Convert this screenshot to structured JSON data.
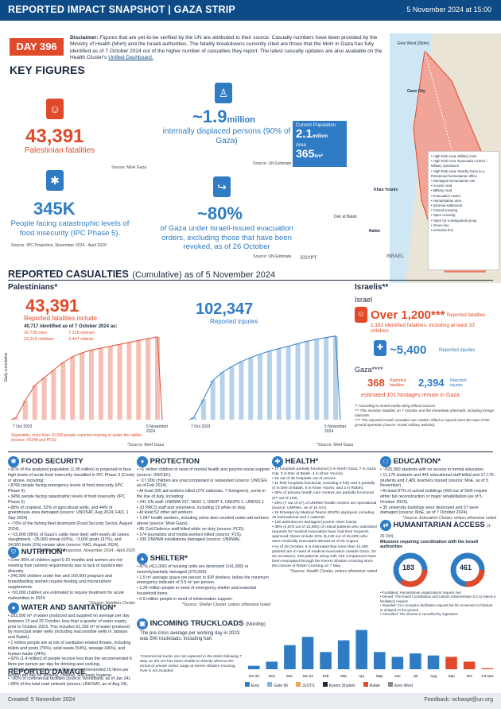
{
  "header": {
    "title": "REPORTED IMPACT SNAPSHOT | GAZA STRIP",
    "date": "5 November 2024 at 15:00"
  },
  "day": {
    "label": "DAY 396"
  },
  "disclaimer": {
    "label": "Disclaimer:",
    "text": "Figures that are yet-to-be verified by the UN are attributed to their source. Casualty numbers have been provided by the Ministry of Health (MoH) and the Israeli authorities. The fatality breakdowns currently cited are those that the MoH in Gaza has fully identified as of 7 October 2024 out of the higher number of casualties they report. The latest casualty updates are also available on the Health Cluster's",
    "link": "Unified Dashboard."
  },
  "key_figures": {
    "title": "KEY FIGURES",
    "fatalities": {
      "value": "43,391",
      "label": "Palestinian fatalities",
      "source": "Source: MoH Gaza"
    },
    "idps": {
      "value": "~1.9",
      "unit": "million",
      "label": "internally displaced persons (90% of Gaza)",
      "source": "Source: UN Estimate"
    },
    "ipc": {
      "value": "345K",
      "label": "People facing catastrophic levels of food insecurity (IPC Phase 5).",
      "source": "Source: IPC Projection, November 2024 - April 2025"
    },
    "evac": {
      "value": "~80%",
      "label": "of Gaza under Israeli-issued evacuation orders, excluding those that have been revoked, as of 26 October",
      "source": "Source: UN Estimate"
    }
  },
  "map": {
    "pop_label": "Current Population",
    "pop_value": "2.1",
    "pop_unit": "million",
    "area_label": "Area",
    "area_value": "365",
    "area_unit": "km²",
    "country1": "ISRAEL",
    "country2": "EGYPT",
    "place1": "Gaza City",
    "place2": "Khan Younis",
    "place3": "Rafah",
    "place4": "Deir al Balah",
    "place5": "Erez West (Zikim)",
    "legend": [
      "High Risk Area: Military zone",
      "High Risk Area: Evacuation orders / Military operations",
      "High Risk Area: Nearby Gaza to a threatened humanitarian office",
      "Damaged humanitarian site",
      "Access road",
      "Military road",
      "Evacuation routes",
      "Humanitarian area",
      "Informal settlement",
      "Closed crossing",
      "Open crossing",
      "Open for a designated group",
      "Green line",
      "Armistice line"
    ]
  },
  "casualties": {
    "title": "REPORTED CASUALTIES",
    "subtitle": "(Cumulative) as of 5 November 2024",
    "pal_title": "Palestinians*",
    "pal_killed": "43,391",
    "pal_killed_label": "Reported fatalities include",
    "identified": "40,717 identified as of 7 October 2024 as:",
    "men": "16,735 men",
    "women": "7,216 women",
    "children": "13,319 children",
    "elderly": "3,447 elderly",
    "pal_injured": "102,347",
    "pal_injured_label": "Reported injuries",
    "y_label": "Daily cumulative",
    "x_start": "7 Oct 2023",
    "x_end": "5 November 2024",
    "pal_note": "Separately, more than 10,000 people reported missing or under the rubble (source: OCHA and PCS)",
    "source": "*Source: MoH Gaza",
    "isr_title": "Israelis**",
    "isr_sub": "Israel",
    "isr_killed": "Over 1,200***",
    "isr_killed_label": "Reported fatalities",
    "isr_ident": "1,162 identified fatalities, including at least 33 children",
    "isr_injured": "~5,400",
    "isr_injured_label": "Reported injuries",
    "gaza_sub": "Gaza****",
    "gaza_killed": "368",
    "gaza_killed_label": "Reported fatalities",
    "gaza_injured": "2,394",
    "gaza_injured_label": "Reported injuries",
    "hostages": "estimated 101 hostages remain in Gaza",
    "isr_notes": [
      "** According to Israeli media citing official sources.",
      "*** This includes fatalities on 7 October and the immediate aftermath, including foreign nationals.",
      "**** The reported Israeli casualties are soldiers killed or injured since the start of the ground operation (source: Israeli military website)."
    ]
  },
  "chart_data": [
    {
      "type": "area",
      "series": [
        {
          "name": "Reported fatalities",
          "values": [
            1000,
            10000,
            18000,
            22000,
            26000,
            30000,
            33000,
            35000,
            36500,
            37500,
            38500,
            39500,
            40500,
            41500,
            42500,
            43391
          ]
        }
      ],
      "x": [
        "7 Oct 2023",
        "",
        "",
        "",
        "",
        "",
        "",
        "",
        "",
        "",
        "",
        "",
        "",
        "",
        "",
        "5 November 2024"
      ],
      "ylabel": "Daily cumulative"
    },
    {
      "type": "area",
      "series": [
        {
          "name": "Reported injuries",
          "values": [
            3000,
            25000,
            48000,
            58000,
            65000,
            71000,
            76000,
            80000,
            84000,
            87000,
            90000,
            93000,
            96000,
            98500,
            100500,
            102347
          ]
        }
      ],
      "x": [
        "7 Oct 2023",
        "",
        "",
        "",
        "",
        "",
        "",
        "",
        "",
        "",
        "",
        "",
        "",
        "",
        "",
        "5 November 2024"
      ]
    },
    {
      "type": "bar",
      "title": "INCOMING TRUCKLOADS",
      "categories": [
        "Oct 23",
        "Nov",
        "Dec",
        "Jan 24",
        "Feb",
        "Mar",
        "Apr",
        "May",
        "Jun",
        "Jul",
        "Aug",
        "Sep",
        "Oct",
        "1-5 Nov"
      ],
      "values": [
        500,
        1100,
        3500,
        4700,
        2500,
        4200,
        5700,
        2500,
        1800,
        2300,
        2000,
        1800,
        1100,
        150
      ]
    }
  ],
  "food": {
    "title": "FOOD SECURITY",
    "items": [
      "91% of the analysed population (1.95 million) is projected to face high levels of acute food insecurity classified in IPC Phase 3 (Crisis) or above, including:",
      "876K people facing emergency levels of food insecurity (IPC Phase 4)",
      "345K people facing catastrophic levels of food insecurity (IPC Phase 5)",
      "68% of cropland, 52% of agricultural wells, and 44% of greenhouse area damaged (source: UNOSAT, Aug 2024; FAO, 1 Sep 2024).",
      "~70% of the fishing fleet destroyed (Food Security Sector, August 2024).",
      "~15,000 (95%) of Gaza's cattle have died; with nearly all calves slaughtered, ~25,000 sheep (43%), ~3,000 goats (37%), and 34,000 birds (1%) remain alive (source: FAO, August 2024)."
    ],
    "source": "* Source: IPC Projection, November 2024 - April 2025"
  },
  "nutrition": {
    "title": "NUTRITION*",
    "items": [
      "Over 96% of children aged 6-23 months and women are not meeting their nutrient requirements due to lack of nutrient diet diversity.",
      "246,000 children under five and 160,000 pregnant and breastfeeding women require feeding and micronutrient supplements.",
      "~50,000 children are estimated to require treatment for acute malnutrition in 2024."
    ],
    "source": "*Source: Nutrition Cluster"
  },
  "wash": {
    "title": "WATER AND SANITATION*",
    "items": [
      "182,000 m³ of water produced and supplied on average per day between 19 and 25 October, less than a quarter of water supply prior to October 2023. This includes 61,100 m³ of water produced by municipal water wells (including inaccessible wells in Jabalya and Rafah).",
      "1 million people are at risk of sanitation-related threats, including toilets and posts (76%), solid waste (54%), sewage (46%), and human waste (34%).",
      "62% (1.4 million) of people receive less than the recommended 6 litres per person per day for drinking and cooking.",
      "47% of people receive less than the recommended 15 litres per person per day for drinking, cooking, and basic hygiene."
    ]
  },
  "protection": {
    "title": "PROTECTION",
    "items": [
      ">1 million children in need of mental health and psycho-social support (source: UNICEF).",
      "~17,000 children are unaccompanied or separated (source: UNICEF, as of Feb 2024).",
      "At least 326 aid workers killed (276 nationals, 7 foreigners), some in the line of duty, including:",
      "241 UN staff: UNRWA 237, WHO 1, UNDP 1, UNOPS 1, UNDSS 1",
      "33 PRCS staff and volunteers, including 19 while on duty",
      "At least 52 other aid workers",
      "1,047 health workers, including some also counted under aid workers above (source: MoH Gaza).",
      "85 Civil Defence staff killed while on duty (source: PCD).",
      "174 journalists and media workers killed (source: PJS).",
      "190 UNRWA installations damaged (source: UNRWA)."
    ]
  },
  "shelter": {
    "title": "SHELTER*",
    "items": [
      "87% (411,000) of housing units are destroyed (141,000) or severely/partially damaged (270,000).",
      "1.5 m² average space per person in IDP shelters, below the minimum emergency indicator of 3.5 m² per person.",
      "1.34 million people in need of emergency shelter and essential household items.",
      "0.9 million people in need of winterization support."
    ],
    "source": "*Source: Shelter Cluster, unless otherwise noted"
  },
  "health": {
    "title": "HEALTH*",
    "items": [
      "17 hospitals partially functional (3 in North Gaza, 7 in Gaza City, 3 in Deir al Balah, 4 in Khan Younis).",
      "19 out of 36 hospitals out of service.",
      "11 field hospitals functional, including 5 fully and 6 partially (4 in Deir al Balah, 5 in Khan Younis, and 2 in Rafah).",
      "35% of primary health care centres are partially functional (47 out of 132).",
      "26% (7 out of 27) of UNRWA health centres are operational (source: UNRWA, as of 16 Oct).",
      "16 Emergency Medical Teams (EMTs) deployed, including 15 international and 1 national.",
      "130 ambulances damaged (source: MoH Gaza).",
      "39% (4,875 out of 15,600) of critical patients who submitted requests for medical evacuation have had their requests approved; these include 33% (5,130 out of 15,600) who were medically evacuated abroad as of 26 August.",
      "As of 29 October, it is estimated that more than 14,000 patients are in need of medical evacuation outside Gaza. On six occasions, 229 patients along with 216 companions have been evacuated through the Kerem Shalom crossing since the closure of Rafah Crossing on 7 May."
    ],
    "source": "*Source: Health Cluster, unless otherwise noted"
  },
  "education": {
    "title": "EDUCATION*",
    "items": [
      "~625,000 students with no access to formal education.",
      "11,170 students and 441 educational staff killed and 17,175 students and 2,481 teachers injured (source: MoE, as of 5 November).",
      "At least 87% of school buildings (493 out of 564) require either full reconstruction or major rehabilitation (as of 5 October 2024).",
      "35 university buildings were destroyed and 57 were damaged (source: MoE, as of 7 October 2024)."
    ],
    "source": "*Source: Education Cluster, unless otherwise noted"
  },
  "access": {
    "title": "HUMANITARIAN ACCESS",
    "period": "(1-31 Oct)",
    "sub": "Missions requiring coordination with the Israeli authorities",
    "v1": "183",
    "v1_label": "North Gaza",
    "v2": "461",
    "v2_label": "South Gaza",
    "legend": [
      "Facilitated: Humanitarian organizations' request met",
      "Denied: The Israeli Coordination and Liaison Administration (CLA) rejects a facilitation request",
      "Impeded: CLA accepts a facilitation request but the movement is blocked or delayed on the ground",
      "Cancelled: The mission is cancelled by organizers"
    ]
  },
  "trucks": {
    "title": "INCOMING TRUCKLOADS",
    "period": "(Monthly)",
    "avg": "The pre-crisis average per working day in 2023 was 500 truckloads, including fuel.",
    "note": "*Commercial trucks are not captured in the totals following 7 May, as the UN has been unable to directly observe the arrival of private sector cargo at Kerem Shalom crossing. Fuel is not included.",
    "legend": [
      "Erez",
      "Gate 96",
      "JLOTS",
      "Kerem Shalom",
      "Rafah",
      "Erez West"
    ],
    "colors": [
      "#2f7cc4",
      "#85b3d8",
      "#f0a35a",
      "#1c2b3f",
      "#e04a2a",
      "#8a8a8a"
    ]
  },
  "damage": {
    "title": "REPORTED DAMAGE",
    "items": [
      "~80% of commercial facilities (source: WorldBank, as of Jan 24).",
      "68% of the total road network (source: UNOSAT, as of Aug 24)."
    ]
  },
  "footer": {
    "created": "Created: 5 November 2024",
    "feedback": "Feedback: ochaopt@un.org"
  },
  "icons": {
    "fatalities": "person-icon",
    "idps": "walking-person-icon",
    "ipc": "wheat-icon",
    "evac": "running-person-icon"
  }
}
